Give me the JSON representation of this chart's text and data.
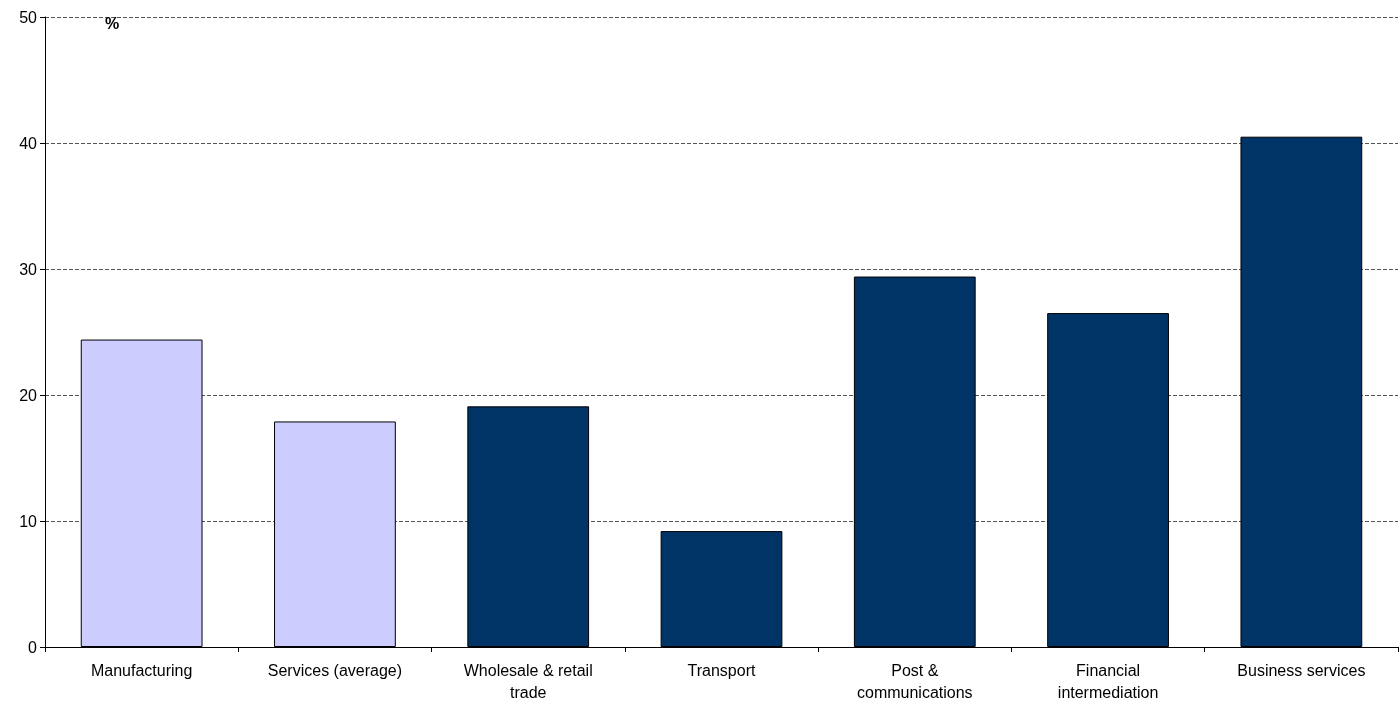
{
  "chart_data": {
    "type": "bar",
    "ylabel": "%",
    "categories": [
      "Manufacturing",
      "Services (average)",
      "Wholesale & retail\ntrade",
      "Transport",
      "Post &\ncommunications",
      "Financial\nintermediation",
      "Business services"
    ],
    "values": [
      24.4,
      17.9,
      19.1,
      9.2,
      29.4,
      26.5,
      40.5
    ],
    "colors": [
      "#ccccff",
      "#ccccff",
      "#003366",
      "#003366",
      "#003366",
      "#003366",
      "#003366"
    ],
    "ylim": [
      0,
      50
    ],
    "yticks": [
      0,
      10,
      20,
      30,
      40,
      50
    ],
    "grid": "y"
  }
}
